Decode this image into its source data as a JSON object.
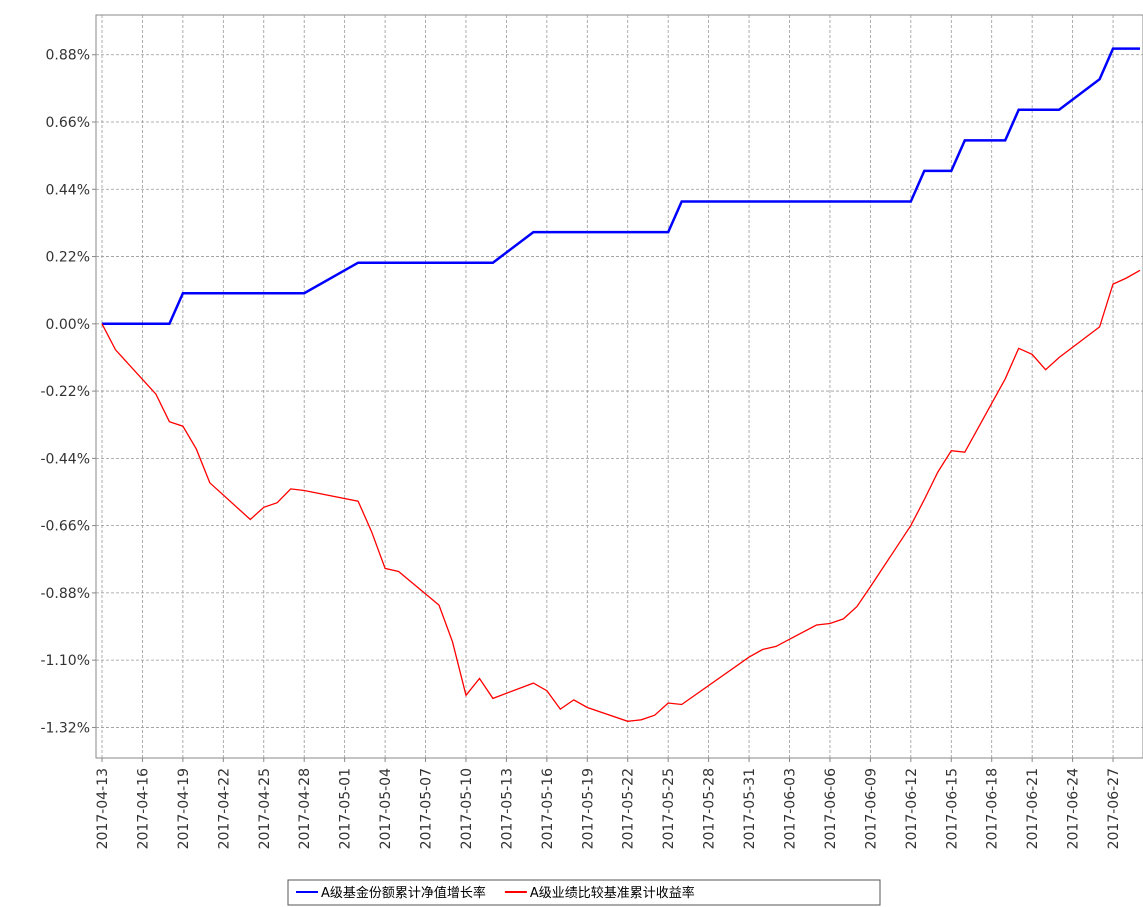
{
  "chart_data": {
    "type": "line",
    "x": [
      "2017-04-13",
      "2017-04-14",
      "2017-04-17",
      "2017-04-18",
      "2017-04-19",
      "2017-04-20",
      "2017-04-21",
      "2017-04-24",
      "2017-04-25",
      "2017-04-26",
      "2017-04-27",
      "2017-04-28",
      "2017-05-02",
      "2017-05-03",
      "2017-05-04",
      "2017-05-05",
      "2017-05-08",
      "2017-05-09",
      "2017-05-10",
      "2017-05-11",
      "2017-05-12",
      "2017-05-15",
      "2017-05-16",
      "2017-05-17",
      "2017-05-18",
      "2017-05-19",
      "2017-05-22",
      "2017-05-23",
      "2017-05-24",
      "2017-05-25",
      "2017-05-26",
      "2017-05-31",
      "2017-06-01",
      "2017-06-02",
      "2017-06-05",
      "2017-06-06",
      "2017-06-07",
      "2017-06-08",
      "2017-06-09",
      "2017-06-12",
      "2017-06-13",
      "2017-06-14",
      "2017-06-15",
      "2017-06-16",
      "2017-06-19",
      "2017-06-20",
      "2017-06-21",
      "2017-06-22",
      "2017-06-23",
      "2017-06-26",
      "2017-06-27",
      "2017-06-28",
      "2017-06-29"
    ],
    "series": [
      {
        "name": "A级基金份额累计净值增长率",
        "color": "#0000ff",
        "values": [
          0,
          0,
          0,
          0,
          0.1,
          0.1,
          0.1,
          0.1,
          0.1,
          0.1,
          0.1,
          0.1,
          0.2,
          0.2,
          0.2,
          0.2,
          0.2,
          0.2,
          0.2,
          0.2,
          0.2,
          0.3,
          0.3,
          0.3,
          0.3,
          0.3,
          0.3,
          0.3,
          0.3,
          0.3,
          0.4,
          0.4,
          0.4,
          0.4,
          0.4,
          0.4,
          0.4,
          0.4,
          0.4,
          0.4,
          0.5,
          0.5,
          0.5,
          0.6,
          0.6,
          0.7,
          0.7,
          0.7,
          0.7,
          0.8,
          0.9,
          0.9,
          0.9
        ]
      },
      {
        "name": "A级业绩比较基准累计收益率",
        "color": "#ff0000",
        "values": [
          0,
          -0.085,
          -0.23,
          -0.32,
          -0.335,
          -0.41,
          -0.52,
          -0.64,
          -0.6,
          -0.585,
          -0.54,
          -0.545,
          -0.58,
          -0.68,
          -0.8,
          -0.81,
          -0.92,
          -1.04,
          -1.215,
          -1.16,
          -1.225,
          -1.175,
          -1.2,
          -1.26,
          -1.23,
          -1.255,
          -1.3,
          -1.295,
          -1.28,
          -1.24,
          -1.245,
          -1.09,
          -1.065,
          -1.055,
          -0.985,
          -0.98,
          -0.965,
          -0.925,
          -0.86,
          -0.66,
          -0.575,
          -0.485,
          -0.415,
          -0.42,
          -0.18,
          -0.08,
          -0.1,
          -0.15,
          -0.11,
          -0.01,
          0.13,
          0.15,
          0.175
        ]
      }
    ],
    "xlim": [
      "2017-04-13",
      "2017-06-29"
    ],
    "xticks": [
      "2017-04-13",
      "2017-04-16",
      "2017-04-19",
      "2017-04-22",
      "2017-04-25",
      "2017-04-28",
      "2017-05-01",
      "2017-05-04",
      "2017-05-07",
      "2017-05-10",
      "2017-05-13",
      "2017-05-16",
      "2017-05-19",
      "2017-05-22",
      "2017-05-25",
      "2017-05-28",
      "2017-05-31",
      "2017-06-03",
      "2017-06-06",
      "2017-06-09",
      "2017-06-12",
      "2017-06-15",
      "2017-06-18",
      "2017-06-21",
      "2017-06-24",
      "2017-06-27"
    ],
    "ylim": [
      -1.42,
      1.01
    ],
    "yticks": [
      {
        "value": -1.32,
        "label": "-1.32%"
      },
      {
        "value": -1.1,
        "label": "-1.10%"
      },
      {
        "value": -0.88,
        "label": "-0.88%"
      },
      {
        "value": -0.66,
        "label": "-0.66%"
      },
      {
        "value": -0.44,
        "label": "-0.44%"
      },
      {
        "value": -0.22,
        "label": "-0.22%"
      },
      {
        "value": 0,
        "label": "0.00%"
      },
      {
        "value": 0.22,
        "label": "0.22%"
      },
      {
        "value": 0.44,
        "label": "0.44%"
      },
      {
        "value": 0.66,
        "label": "0.66%"
      },
      {
        "value": 0.88,
        "label": "0.88%"
      }
    ],
    "grid": true,
    "legend": "bottom"
  }
}
